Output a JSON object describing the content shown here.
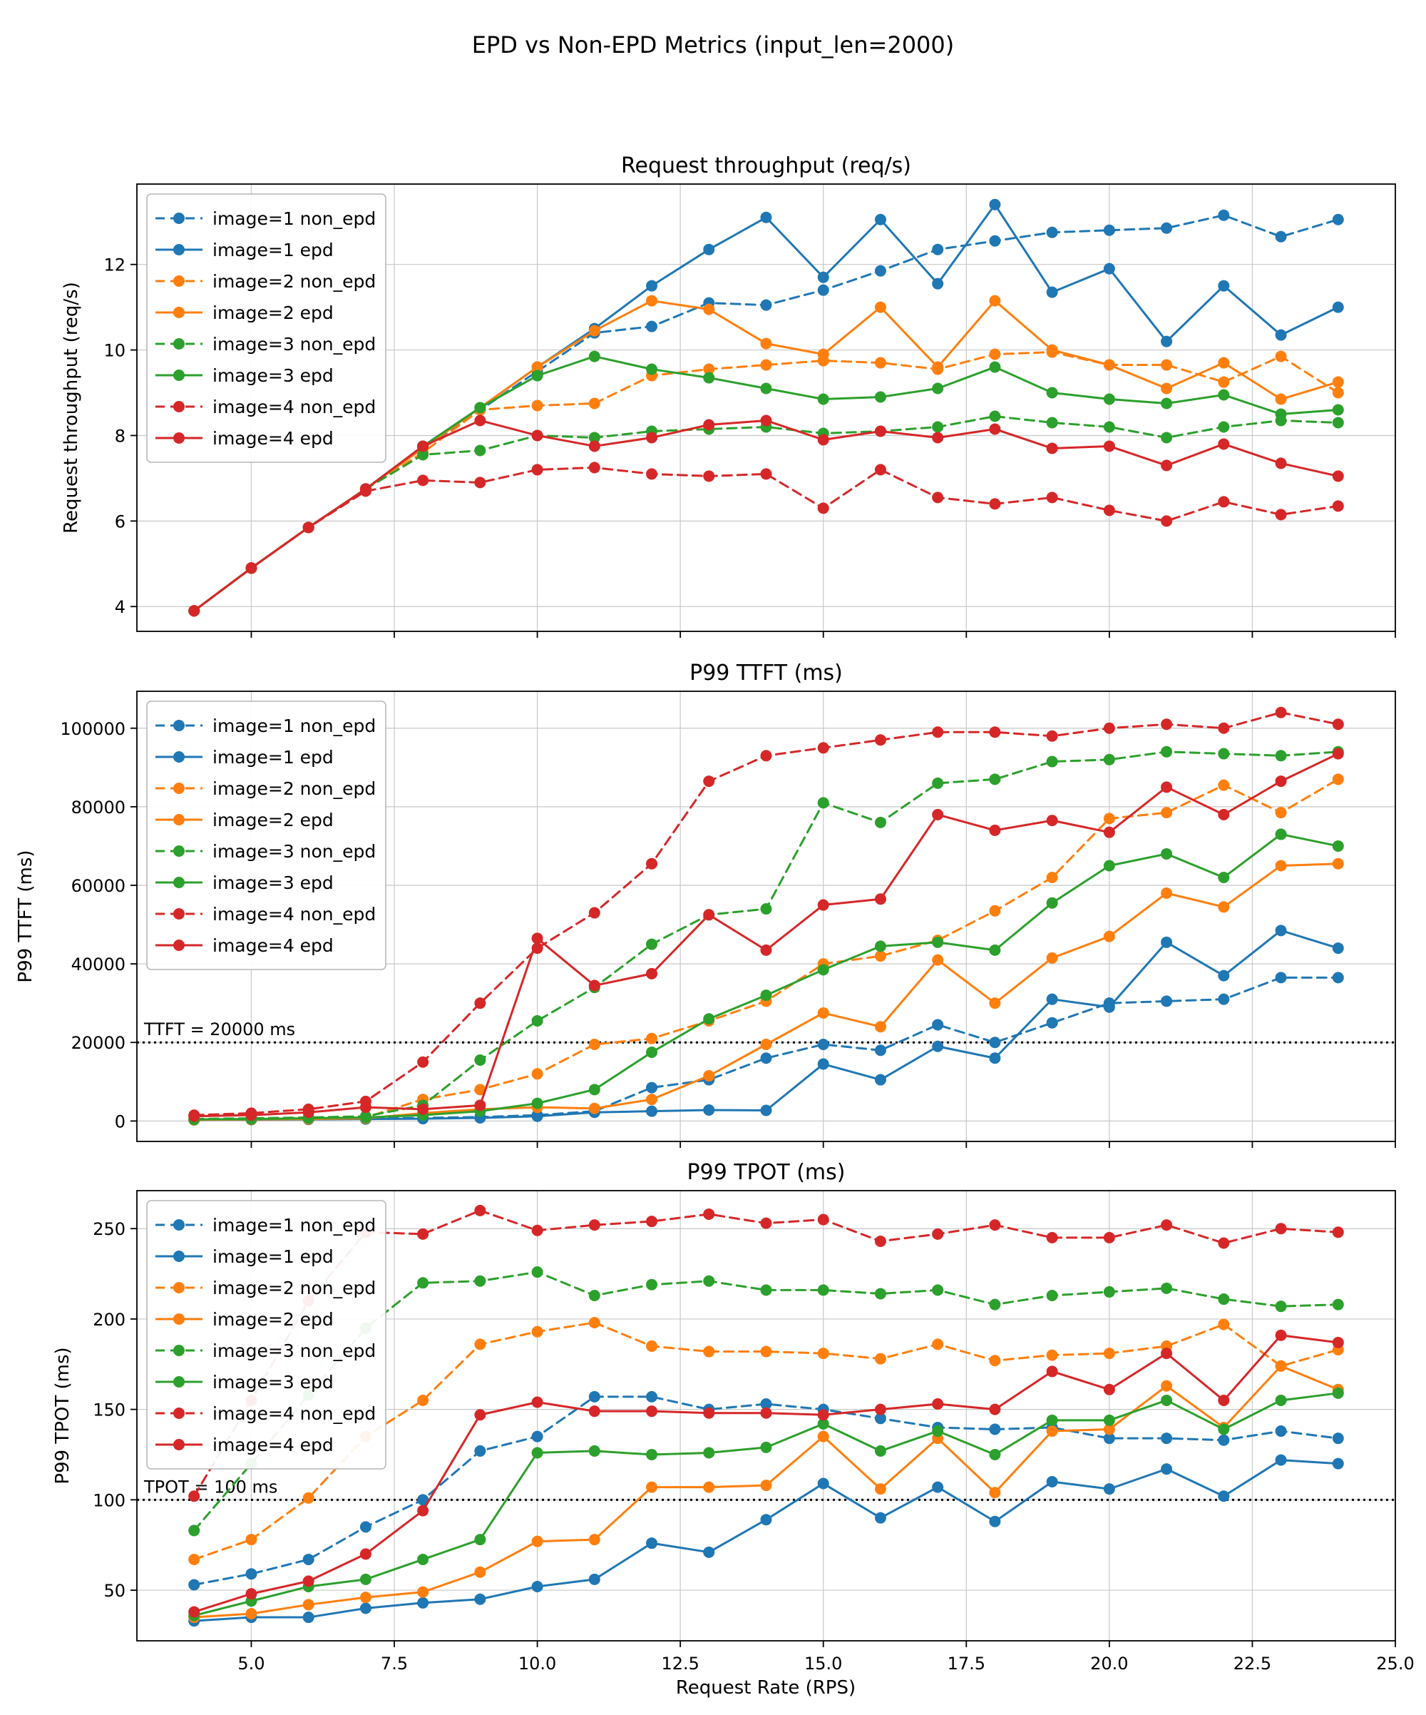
{
  "figure": {
    "title": "EPD vs Non-EPD Metrics (input_len=2000)",
    "xlabel": "Request Rate (RPS)",
    "background": "#ffffff",
    "text_color": "#000000",
    "grid_color": "#c8c8c8",
    "accent_colors": {
      "image1": "#1f77b4",
      "image2": "#ff7f0e",
      "image3": "#2ca02c",
      "image4": "#d62728"
    }
  },
  "chart_data": [
    {
      "type": "line",
      "title": "Request throughput (req/s)",
      "ylabel": "Request throughput (req/s)",
      "xlabel": "",
      "legend_position": "upper left",
      "grid": true,
      "show_xticklabels": false,
      "x": [
        4,
        5,
        6,
        7,
        8,
        9,
        10,
        11,
        12,
        13,
        14,
        15,
        16,
        17,
        18,
        19,
        20,
        21,
        22,
        23,
        24
      ],
      "xlim": [
        3,
        25
      ],
      "xticks": [
        5.0,
        7.5,
        10.0,
        12.5,
        15.0,
        17.5,
        20.0,
        22.5,
        25.0
      ],
      "ylim": [
        3.42,
        13.88
      ],
      "yticks": [
        4,
        6,
        8,
        10,
        12
      ],
      "series": [
        {
          "name": "image=1 non_epd",
          "color": "#1f77b4",
          "dash": true,
          "values": [
            3.9,
            4.9,
            5.85,
            6.75,
            7.7,
            8.6,
            9.5,
            10.4,
            10.55,
            11.1,
            11.05,
            11.4,
            11.85,
            12.35,
            12.55,
            12.75,
            12.8,
            12.85,
            13.15,
            12.65,
            13.05
          ]
        },
        {
          "name": "image=1 epd",
          "color": "#1f77b4",
          "dash": false,
          "values": [
            3.9,
            4.9,
            5.85,
            6.75,
            7.75,
            8.65,
            9.6,
            10.5,
            11.5,
            12.35,
            13.1,
            11.7,
            13.05,
            11.55,
            13.4,
            11.35,
            11.9,
            10.2,
            11.5,
            10.35,
            11.0
          ]
        },
        {
          "name": "image=2 non_epd",
          "color": "#ff7f0e",
          "dash": true,
          "values": [
            3.9,
            4.9,
            5.85,
            6.75,
            7.6,
            8.6,
            8.7,
            8.75,
            9.4,
            9.55,
            9.65,
            9.75,
            9.7,
            9.55,
            9.9,
            9.95,
            9.65,
            9.65,
            9.25,
            9.85,
            9.0
          ]
        },
        {
          "name": "image=2 epd",
          "color": "#ff7f0e",
          "dash": false,
          "values": [
            3.9,
            4.9,
            5.85,
            6.75,
            7.7,
            8.65,
            9.6,
            10.45,
            11.15,
            10.95,
            10.15,
            9.9,
            11.0,
            9.6,
            11.15,
            10.0,
            9.65,
            9.1,
            9.7,
            8.85,
            9.25
          ]
        },
        {
          "name": "image=3 non_epd",
          "color": "#2ca02c",
          "dash": true,
          "values": [
            3.9,
            4.9,
            5.85,
            6.75,
            7.55,
            7.65,
            8.0,
            7.95,
            8.1,
            8.15,
            8.2,
            8.05,
            8.1,
            8.2,
            8.45,
            8.3,
            8.2,
            7.95,
            8.2,
            8.35,
            8.3
          ]
        },
        {
          "name": "image=3 epd",
          "color": "#2ca02c",
          "dash": false,
          "values": [
            3.9,
            4.9,
            5.85,
            6.75,
            7.75,
            8.65,
            9.4,
            9.85,
            9.55,
            9.35,
            9.1,
            8.85,
            8.9,
            9.1,
            9.6,
            9.0,
            8.85,
            8.75,
            8.95,
            8.5,
            8.6
          ]
        },
        {
          "name": "image=4 non_epd",
          "color": "#d62728",
          "dash": true,
          "values": [
            3.9,
            4.9,
            5.85,
            6.7,
            6.95,
            6.9,
            7.2,
            7.25,
            7.1,
            7.05,
            7.1,
            6.3,
            7.2,
            6.55,
            6.4,
            6.55,
            6.25,
            6.0,
            6.45,
            6.15,
            6.35
          ]
        },
        {
          "name": "image=4 epd",
          "color": "#d62728",
          "dash": false,
          "values": [
            3.9,
            4.9,
            5.85,
            6.75,
            7.75,
            8.35,
            8.0,
            7.75,
            7.95,
            8.25,
            8.35,
            7.9,
            8.1,
            7.95,
            8.15,
            7.7,
            7.75,
            7.3,
            7.8,
            7.35,
            7.05
          ]
        }
      ]
    },
    {
      "type": "line",
      "title": "P99 TTFT (ms)",
      "ylabel": "P99 TTFT (ms)",
      "xlabel": "",
      "legend_position": "upper left",
      "grid": true,
      "show_xticklabels": false,
      "x": [
        4,
        5,
        6,
        7,
        8,
        9,
        10,
        11,
        12,
        13,
        14,
        15,
        16,
        17,
        18,
        19,
        20,
        21,
        22,
        23,
        24
      ],
      "xlim": [
        3,
        25
      ],
      "xticks": [
        5.0,
        7.5,
        10.0,
        12.5,
        15.0,
        17.5,
        20.0,
        22.5,
        25.0
      ],
      "ylim": [
        -5200,
        109400
      ],
      "yticks": [
        0,
        20000,
        40000,
        60000,
        80000,
        100000
      ],
      "hline": {
        "y": 20000,
        "label": "TTFT = 20000 ms"
      },
      "series": [
        {
          "name": "image=1 non_epd",
          "color": "#1f77b4",
          "dash": true,
          "values": [
            300,
            400,
            500,
            600,
            800,
            1000,
            1500,
            2500,
            8500,
            10500,
            16000,
            19500,
            18000,
            24500,
            20000,
            25000,
            30000,
            30500,
            31000,
            36500,
            36500
          ]
        },
        {
          "name": "image=1 epd",
          "color": "#1f77b4",
          "dash": false,
          "values": [
            300,
            350,
            400,
            500,
            600,
            800,
            1200,
            2200,
            2500,
            2800,
            2700,
            14500,
            10500,
            19000,
            16000,
            31000,
            29000,
            45500,
            37000,
            48500,
            44000
          ]
        },
        {
          "name": "image=2 non_epd",
          "color": "#ff7f0e",
          "dash": true,
          "values": [
            400,
            500,
            700,
            900,
            5500,
            8000,
            12000,
            19500,
            21000,
            25500,
            30500,
            40000,
            42000,
            46000,
            53500,
            62000,
            77000,
            78500,
            85500,
            78500,
            87000
          ]
        },
        {
          "name": "image=2 epd",
          "color": "#ff7f0e",
          "dash": false,
          "values": [
            300,
            400,
            500,
            700,
            2000,
            3000,
            3500,
            3200,
            5500,
            11500,
            19500,
            27500,
            24000,
            41000,
            30000,
            41500,
            47000,
            58000,
            54500,
            65000,
            65500
          ]
        },
        {
          "name": "image=3 non_epd",
          "color": "#2ca02c",
          "dash": true,
          "values": [
            500,
            700,
            900,
            1200,
            4000,
            15500,
            25500,
            34000,
            45000,
            52500,
            54000,
            81000,
            76000,
            86000,
            87000,
            91500,
            92000,
            94000,
            93500,
            93000,
            94000
          ]
        },
        {
          "name": "image=3 epd",
          "color": "#2ca02c",
          "dash": false,
          "values": [
            400,
            500,
            700,
            900,
            1500,
            2500,
            4500,
            8000,
            17500,
            26000,
            32000,
            38500,
            44500,
            45500,
            43500,
            55500,
            65000,
            68000,
            62000,
            73000,
            70000
          ]
        },
        {
          "name": "image=4 non_epd",
          "color": "#d62728",
          "dash": true,
          "values": [
            1500,
            2000,
            3000,
            5000,
            15000,
            30000,
            44000,
            53000,
            65500,
            86500,
            93000,
            95000,
            97000,
            99000,
            99000,
            98000,
            100000,
            101000,
            100000,
            104000,
            101000
          ]
        },
        {
          "name": "image=4 epd",
          "color": "#d62728",
          "dash": false,
          "values": [
            1200,
            1500,
            2200,
            3500,
            3000,
            4000,
            46500,
            34500,
            37500,
            52500,
            43500,
            55000,
            56500,
            78000,
            74000,
            76500,
            73500,
            85000,
            78000,
            86500,
            93500
          ]
        }
      ]
    },
    {
      "type": "line",
      "title": "P99 TPOT (ms)",
      "ylabel": "P99 TPOT (ms)",
      "xlabel": "Request Rate (RPS)",
      "legend_position": "upper left",
      "grid": true,
      "show_xticklabels": true,
      "x": [
        4,
        5,
        6,
        7,
        8,
        9,
        10,
        11,
        12,
        13,
        14,
        15,
        16,
        17,
        18,
        19,
        20,
        21,
        22,
        23,
        24
      ],
      "xlim": [
        3,
        25
      ],
      "xticks": [
        5.0,
        7.5,
        10.0,
        12.5,
        15.0,
        17.5,
        20.0,
        22.5,
        25.0
      ],
      "ylim": [
        22,
        271
      ],
      "yticks": [
        50,
        100,
        150,
        200,
        250
      ],
      "hline": {
        "y": 100,
        "label": "TPOT = 100 ms"
      },
      "series": [
        {
          "name": "image=1 non_epd",
          "color": "#1f77b4",
          "dash": true,
          "values": [
            53,
            59,
            67,
            85,
            100,
            127,
            135,
            157,
            157,
            150,
            153,
            150,
            145,
            140,
            139,
            140,
            134,
            134,
            133,
            138,
            134
          ]
        },
        {
          "name": "image=1 epd",
          "color": "#1f77b4",
          "dash": false,
          "values": [
            33,
            35,
            35,
            40,
            43,
            45,
            52,
            56,
            76,
            71,
            89,
            109,
            90,
            107,
            88,
            110,
            106,
            117,
            102,
            122,
            120
          ]
        },
        {
          "name": "image=2 non_epd",
          "color": "#ff7f0e",
          "dash": true,
          "values": [
            67,
            78,
            101,
            135,
            155,
            186,
            193,
            198,
            185,
            182,
            182,
            181,
            178,
            186,
            177,
            180,
            181,
            185,
            197,
            174,
            183
          ]
        },
        {
          "name": "image=2 epd",
          "color": "#ff7f0e",
          "dash": false,
          "values": [
            35,
            37,
            42,
            46,
            49,
            60,
            77,
            78,
            107,
            107,
            108,
            135,
            106,
            134,
            104,
            138,
            139,
            163,
            140,
            174,
            161
          ]
        },
        {
          "name": "image=3 non_epd",
          "color": "#2ca02c",
          "dash": true,
          "values": [
            83,
            120,
            158,
            195,
            220,
            221,
            226,
            213,
            219,
            221,
            216,
            216,
            214,
            216,
            208,
            213,
            215,
            217,
            211,
            207,
            208
          ]
        },
        {
          "name": "image=3 epd",
          "color": "#2ca02c",
          "dash": false,
          "values": [
            36,
            44,
            52,
            56,
            67,
            78,
            126,
            127,
            125,
            126,
            129,
            142,
            127,
            138,
            125,
            144,
            144,
            155,
            139,
            155,
            159
          ]
        },
        {
          "name": "image=4 non_epd",
          "color": "#d62728",
          "dash": true,
          "values": [
            102,
            155,
            210,
            248,
            247,
            260,
            249,
            252,
            254,
            258,
            253,
            255,
            243,
            247,
            252,
            245,
            245,
            252,
            242,
            250,
            248
          ]
        },
        {
          "name": "image=4 epd",
          "color": "#d62728",
          "dash": false,
          "values": [
            38,
            48,
            55,
            70,
            94,
            147,
            154,
            149,
            149,
            148,
            148,
            147,
            150,
            153,
            150,
            171,
            161,
            181,
            155,
            191,
            187
          ]
        }
      ]
    }
  ]
}
